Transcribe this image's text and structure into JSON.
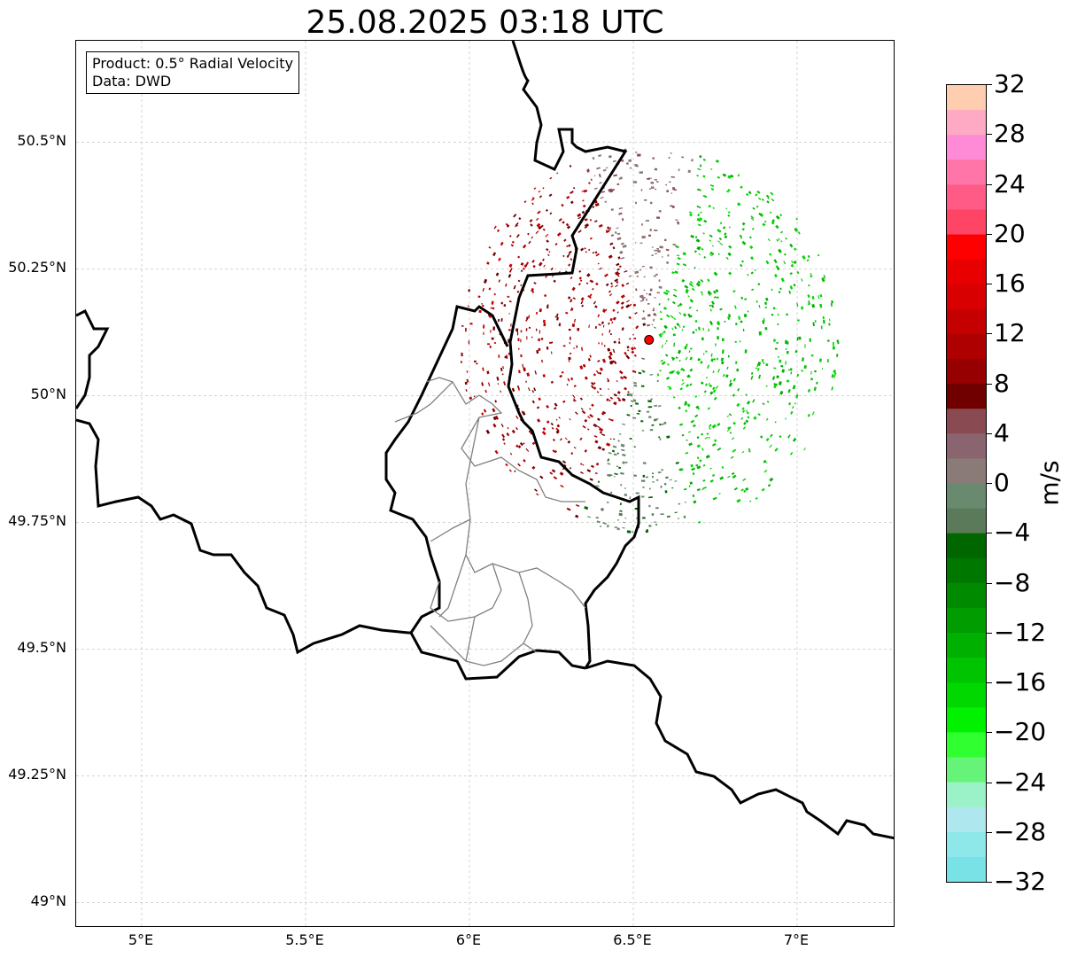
{
  "title": "25.08.2025 03:18 UTC",
  "info_box": {
    "product": "Product: 0.5° Radial Velocity",
    "data": "Data: DWD"
  },
  "map": {
    "lon_range": [
      4.8,
      7.3
    ],
    "lat_range": [
      48.95,
      50.7
    ],
    "lat_ticks": [
      {
        "value": 50.5,
        "label": "50.5°N"
      },
      {
        "value": 50.25,
        "label": "50.25°N"
      },
      {
        "value": 50.0,
        "label": "50°N"
      },
      {
        "value": 49.75,
        "label": "49.75°N"
      },
      {
        "value": 49.5,
        "label": "49.5°N"
      },
      {
        "value": 49.25,
        "label": "49.25°N"
      },
      {
        "value": 49.0,
        "label": "49°N"
      }
    ],
    "lon_ticks": [
      {
        "value": 5.0,
        "label": "5°E"
      },
      {
        "value": 5.5,
        "label": "5.5°E"
      },
      {
        "value": 6.0,
        "label": "6°E"
      },
      {
        "value": 6.5,
        "label": "6.5°E"
      },
      {
        "value": 7.0,
        "label": "7°E"
      }
    ],
    "grid": true,
    "radar_site": {
      "lon": 6.548,
      "lat": 50.11,
      "color": "#ff0000"
    },
    "border_color": "#000000",
    "admin_color": "#808080"
  },
  "colorbar": {
    "label": "m/s",
    "min": -32,
    "max": 32,
    "ticks": [
      "32",
      "28",
      "24",
      "20",
      "16",
      "12",
      "8",
      "4",
      "0",
      "−4",
      "−8",
      "−12",
      "−16",
      "−20",
      "−24",
      "−28",
      "−32"
    ],
    "tick_values": [
      32,
      28,
      24,
      20,
      16,
      12,
      8,
      4,
      0,
      -4,
      -8,
      -12,
      -16,
      -20,
      -24,
      -28,
      -32
    ],
    "colors_top_to_bottom": [
      "#ffcdb0",
      "#ffaac4",
      "#ff8ad6",
      "#ff75a8",
      "#ff5b86",
      "#ff4565",
      "#ff0000",
      "#e80000",
      "#d80000",
      "#c40000",
      "#ae0000",
      "#960000",
      "#700000",
      "#8a4a52",
      "#8a6570",
      "#8a7a78",
      "#6a8a70",
      "#5a7a5a",
      "#006600",
      "#007800",
      "#008a00",
      "#009c00",
      "#00b000",
      "#00c400",
      "#00d800",
      "#00f200",
      "#30ff30",
      "#66f478",
      "#9cf2c8",
      "#aee8ee",
      "#8ee8ea",
      "#78e2e6"
    ]
  },
  "chart_data": {
    "type": "map",
    "title": "25.08.2025 03:18 UTC",
    "product": "0.5° Radial Velocity",
    "source": "DWD",
    "units": "m/s",
    "colorbar_range": [
      -32,
      32
    ],
    "lon_range": [
      4.8,
      7.3
    ],
    "lat_range": [
      48.95,
      50.7
    ],
    "radar_site": [
      6.548,
      50.11
    ],
    "velocity_pattern": [
      {
        "sector": "west/southwest of radar",
        "sign": "positive",
        "approx_range_ms": [
          8,
          16
        ]
      },
      {
        "sector": "northwest of radar",
        "sign": "near zero to positive",
        "approx_range_ms": [
          0,
          8
        ]
      },
      {
        "sector": "east/northeast of radar",
        "sign": "negative",
        "approx_range_ms": [
          -20,
          -8
        ]
      },
      {
        "sector": "southeast of radar",
        "sign": "near zero to negative",
        "approx_range_ms": [
          -8,
          0
        ]
      }
    ]
  }
}
